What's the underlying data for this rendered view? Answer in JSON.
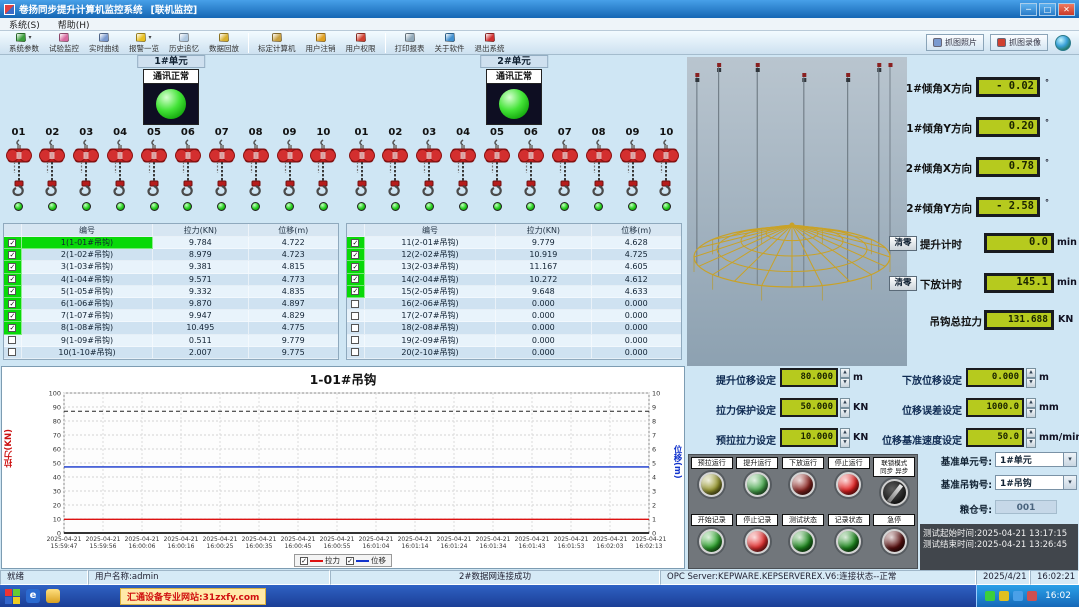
{
  "window": {
    "title": "卷扬同步提升计算机监控系统",
    "subtitle": "[联机监控]",
    "minimize": "─",
    "maximize": "□",
    "close": "✕"
  },
  "menu": {
    "items": [
      {
        "label": "系统(S)"
      },
      {
        "label": "帮助(H)"
      }
    ]
  },
  "toolbar": {
    "items": [
      {
        "label": "系统参数",
        "icon": "params-icon",
        "color": "#3a9e3a",
        "dropdown": true
      },
      {
        "label": "试验监控",
        "icon": "monitor-icon",
        "color": "#d86aa0"
      },
      {
        "label": "实时曲线",
        "icon": "curve-icon",
        "color": "#7a9ad0"
      },
      {
        "label": "报警一览",
        "icon": "alarm-icon",
        "color": "#e8c020",
        "dropdown": true
      },
      {
        "label": "历史追忆",
        "icon": "history-icon",
        "color": "#b0c8e0"
      },
      {
        "label": "数据回放",
        "icon": "playback-icon",
        "color": "#d8b030",
        "sep_after": true
      },
      {
        "label": "标定计算机",
        "icon": "calibrate-icon",
        "color": "#c8a040"
      },
      {
        "label": "用户注销",
        "icon": "logout-icon",
        "color": "#e0a020"
      },
      {
        "label": "用户权限",
        "icon": "permission-icon",
        "color": "#d04030",
        "sep_after": true
      },
      {
        "label": "打印报表",
        "icon": "print-icon",
        "color": "#90a8b8"
      },
      {
        "label": "关于软件",
        "icon": "about-icon",
        "color": "#4090d0"
      },
      {
        "label": "退出系统",
        "icon": "exit-icon",
        "color": "#d03030"
      }
    ],
    "right_buttons": [
      {
        "label": "抓图照片",
        "icon": "snapshot-icon",
        "color": "#7a9ad0"
      },
      {
        "label": "抓图录像",
        "icon": "record-icon",
        "color": "#d04030"
      }
    ]
  },
  "units": [
    {
      "name": "1#单元",
      "status": "通讯正常",
      "hoists": [
        "01",
        "02",
        "03",
        "04",
        "05",
        "06",
        "07",
        "08",
        "09",
        "10"
      ],
      "table": {
        "headers": [
          "编号",
          "拉力(KN)",
          "位移(m)"
        ],
        "rows": [
          {
            "checked": true,
            "selected": true,
            "id": "1(1-01#吊钩)",
            "force": "9.784",
            "disp": "4.722"
          },
          {
            "checked": true,
            "selected": false,
            "id": "2(1-02#吊钩)",
            "force": "8.979",
            "disp": "4.723"
          },
          {
            "checked": true,
            "selected": false,
            "id": "3(1-03#吊钩)",
            "force": "9.381",
            "disp": "4.815"
          },
          {
            "checked": true,
            "selected": false,
            "id": "4(1-04#吊钩)",
            "force": "9.571",
            "disp": "4.773"
          },
          {
            "checked": true,
            "selected": false,
            "id": "5(1-05#吊钩)",
            "force": "9.332",
            "disp": "4.835"
          },
          {
            "checked": true,
            "selected": false,
            "id": "6(1-06#吊钩)",
            "force": "9.870",
            "disp": "4.897"
          },
          {
            "checked": true,
            "selected": false,
            "id": "7(1-07#吊钩)",
            "force": "9.947",
            "disp": "4.829"
          },
          {
            "checked": true,
            "selected": false,
            "id": "8(1-08#吊钩)",
            "force": "10.495",
            "disp": "4.775"
          },
          {
            "checked": false,
            "selected": false,
            "id": "9(1-09#吊钩)",
            "force": "0.511",
            "disp": "9.779"
          },
          {
            "checked": false,
            "selected": false,
            "id": "10(1-10#吊钩)",
            "force": "2.007",
            "disp": "9.775"
          }
        ]
      }
    },
    {
      "name": "2#单元",
      "status": "通讯正常",
      "hoists": [
        "01",
        "02",
        "03",
        "04",
        "05",
        "06",
        "07",
        "08",
        "09",
        "10"
      ],
      "table": {
        "headers": [
          "编号",
          "拉力(KN)",
          "位移(m)"
        ],
        "rows": [
          {
            "checked": true,
            "selected": false,
            "id": "11(2-01#吊钩)",
            "force": "9.779",
            "disp": "4.628"
          },
          {
            "checked": true,
            "selected": false,
            "id": "12(2-02#吊钩)",
            "force": "10.919",
            "disp": "4.725"
          },
          {
            "checked": true,
            "selected": false,
            "id": "13(2-03#吊钩)",
            "force": "11.167",
            "disp": "4.605"
          },
          {
            "checked": true,
            "selected": false,
            "id": "14(2-04#吊钩)",
            "force": "10.272",
            "disp": "4.612"
          },
          {
            "checked": true,
            "selected": false,
            "id": "15(2-05#吊钩)",
            "force": "9.648",
            "disp": "4.633"
          },
          {
            "checked": false,
            "selected": false,
            "id": "16(2-06#吊钩)",
            "force": "0.000",
            "disp": "0.000"
          },
          {
            "checked": false,
            "selected": false,
            "id": "17(2-07#吊钩)",
            "force": "0.000",
            "disp": "0.000"
          },
          {
            "checked": false,
            "selected": false,
            "id": "18(2-08#吊钩)",
            "force": "0.000",
            "disp": "0.000"
          },
          {
            "checked": false,
            "selected": false,
            "id": "19(2-09#吊钩)",
            "force": "0.000",
            "disp": "0.000"
          },
          {
            "checked": false,
            "selected": false,
            "id": "20(2-10#吊钩)",
            "force": "0.000",
            "disp": "0.000"
          }
        ]
      }
    }
  ],
  "chart_data": {
    "type": "line",
    "title": "1-01#吊钩",
    "ylabel_left": "拉力(KN)",
    "ylabel_right": "位移(m)",
    "ylim_left": [
      0,
      100
    ],
    "ylim_right": [
      0,
      10
    ],
    "yticks_left": [
      100,
      90,
      80,
      70,
      60,
      50,
      40,
      30,
      20,
      10,
      0
    ],
    "yticks_right": [
      10,
      9,
      8,
      7,
      6,
      5,
      4,
      3,
      2,
      1,
      0
    ],
    "x_date": "2025-04-21",
    "x_times": [
      "15:59:47",
      "15:59:56",
      "16:00:06",
      "16:00:16",
      "16:00:25",
      "16:00:35",
      "16:00:45",
      "16:00:55",
      "16:01:04",
      "16:01:14",
      "16:01:24",
      "16:01:34",
      "16:01:43",
      "16:01:53",
      "16:02:03",
      "16:02:13"
    ],
    "threshold_left": 87,
    "grid": true,
    "legend_position": "bottom",
    "series": [
      {
        "name": "拉力",
        "axis": "left",
        "color": "#dd1111",
        "values": [
          9.78,
          9.78,
          9.78,
          9.78,
          9.78,
          9.78,
          9.78,
          9.78,
          9.78,
          9.78,
          9.78,
          9.78,
          9.78,
          9.78,
          9.78,
          9.78
        ]
      },
      {
        "name": "位移",
        "axis": "right",
        "color": "#1133cc",
        "values": [
          4.72,
          4.72,
          4.72,
          4.72,
          4.72,
          4.72,
          4.72,
          4.72,
          4.72,
          4.72,
          4.72,
          4.72,
          4.72,
          4.72,
          4.72,
          4.72
        ]
      }
    ],
    "legend": [
      {
        "label": "拉力",
        "color": "#dd1111",
        "checked": true
      },
      {
        "label": "位移",
        "color": "#1133cc",
        "checked": true
      }
    ]
  },
  "right_panel": {
    "incline": [
      {
        "label": "1#倾角X方向",
        "value": "- 0.02",
        "unit": "°"
      },
      {
        "label": "1#倾角Y方向",
        "value": "0.20",
        "unit": "°"
      },
      {
        "label": "2#倾角X方向",
        "value": "0.78",
        "unit": "°"
      },
      {
        "label": "2#倾角Y方向",
        "value": "- 2.58",
        "unit": "°"
      }
    ],
    "timers": [
      {
        "button": "清零",
        "label": "提升计时",
        "value": "0.0",
        "unit": "min"
      },
      {
        "button": "清零",
        "label": "下放计时",
        "value": "145.1",
        "unit": "min"
      }
    ],
    "total_force": {
      "label": "吊钩总拉力",
      "value": "131.688",
      "unit": "KN"
    },
    "settings": [
      {
        "label": "提升位移设定",
        "value": "80.000",
        "unit": "m"
      },
      {
        "label": "下放位移设定",
        "value": "0.000",
        "unit": "m"
      },
      {
        "label": "拉力保护设定",
        "value": "50.000",
        "unit": "KN"
      },
      {
        "label": "位移误差设定",
        "value": "1000.0",
        "unit": "mm"
      },
      {
        "label": "预拉拉力设定",
        "value": "10.000",
        "unit": "KN"
      },
      {
        "label": "位移基准速度设定",
        "value": "50.0",
        "unit": "mm/min"
      }
    ],
    "buttons": [
      [
        {
          "label": "预拉运行",
          "kind": "button",
          "color": "#97972f"
        },
        {
          "label": "提升运行",
          "kind": "button",
          "color": "#49a84e"
        },
        {
          "label": "下放运行",
          "kind": "button",
          "color": "#8c2622"
        },
        {
          "label": "停止运行",
          "kind": "button",
          "color": "#e32020"
        },
        {
          "label": "联锁模式",
          "label2": "同步 异步",
          "kind": "knob"
        }
      ],
      [
        {
          "label": "开始记录",
          "kind": "button",
          "color": "#2da32d"
        },
        {
          "label": "停止记录",
          "kind": "button",
          "color": "#e33030"
        },
        {
          "label": "测试状态",
          "kind": "button",
          "color": "#1f8a1f"
        },
        {
          "label": "记录状态",
          "kind": "button",
          "color": "#1f8a1f"
        },
        {
          "label": "急停",
          "kind": "button",
          "color": "#5a1010"
        }
      ]
    ],
    "selectors": [
      {
        "label": "基准单元号:",
        "value": "1#单元"
      },
      {
        "label": "基准吊钩号:",
        "value": "1#吊钩"
      }
    ],
    "silo": {
      "label": "粮仓号:",
      "value": "001"
    },
    "times": [
      "测试起始时间:2025-04-21 13:17:15",
      "测试结束时间:2025-04-21 13:26:45"
    ]
  },
  "statusbar": {
    "segments": [
      "就绪",
      "用户名称:admin",
      "2#数据网连接成功",
      "OPC Server:KEPWARE.KEPSERVEREX.V6:连接状态--正常",
      "2025/4/21",
      "16:02:21"
    ]
  },
  "taskbar": {
    "watermark": "汇通设备专业网站:31zxfy.com",
    "time": "16:02"
  }
}
